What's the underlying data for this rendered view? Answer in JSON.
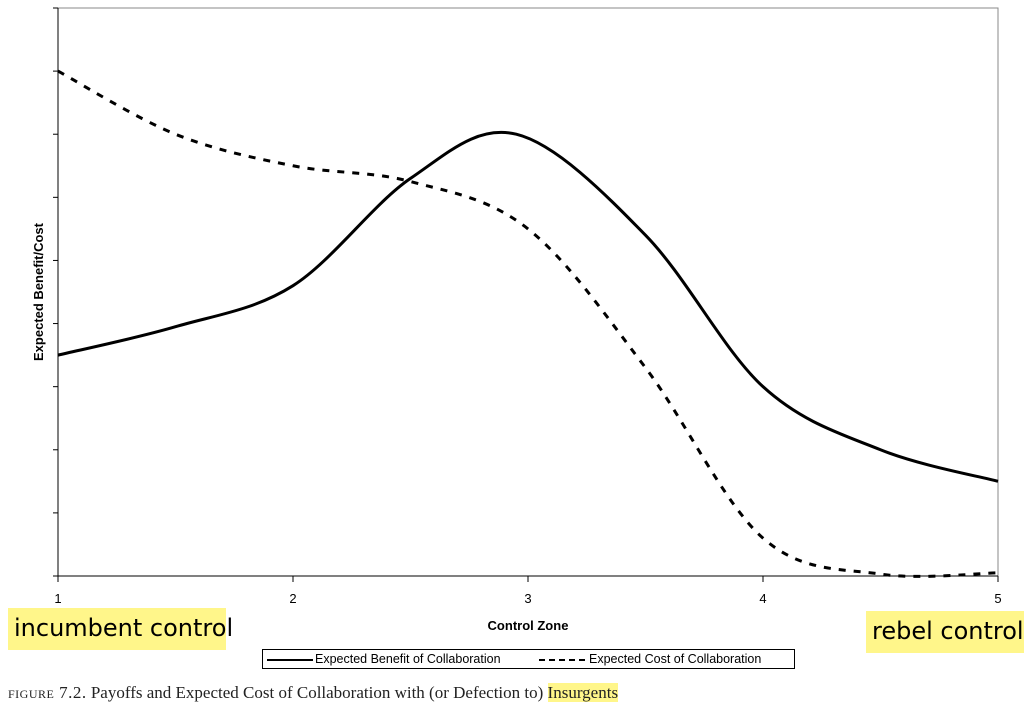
{
  "chart_data": {
    "type": "line",
    "title": "",
    "xlabel": "Control Zone",
    "ylabel": "Expected Benefit/Cost",
    "xlim": [
      1,
      5
    ],
    "ylim": [
      0,
      9
    ],
    "x_ticks": [
      1,
      2,
      3,
      4,
      5
    ],
    "y_tick_count": 9,
    "grid": false,
    "legend_position": "bottom",
    "series": [
      {
        "name": "Expected Benefit of Collaboration",
        "style": "solid",
        "color": "#000000",
        "points": [
          [
            1,
            3.5
          ],
          [
            1.5,
            3.95
          ],
          [
            2,
            4.6
          ],
          [
            2.5,
            6.3
          ],
          [
            2.95,
            7.0
          ],
          [
            3.5,
            5.4
          ],
          [
            4,
            3.0
          ],
          [
            4.5,
            2.0
          ],
          [
            5,
            1.5
          ]
        ]
      },
      {
        "name": "Expected Cost of Collaboration",
        "style": "dashed",
        "color": "#000000",
        "points": [
          [
            1,
            8.0
          ],
          [
            1.5,
            7.0
          ],
          [
            2,
            6.5
          ],
          [
            2.5,
            6.25
          ],
          [
            3,
            5.5
          ],
          [
            3.5,
            3.3
          ],
          [
            4,
            0.6
          ],
          [
            4.5,
            0.03
          ],
          [
            5,
            0.05
          ]
        ]
      }
    ]
  },
  "annotations": {
    "left_label": "incumbent control",
    "right_label": "rebel control"
  },
  "caption": {
    "figure_label": "figure 7.2.",
    "text": "Payoffs and Expected Cost of Collaboration with (or Defection to)",
    "highlighted": "Insurgents"
  }
}
